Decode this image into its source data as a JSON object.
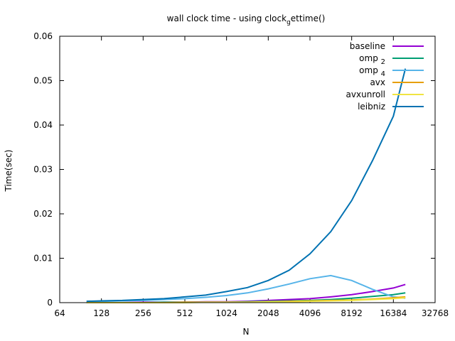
{
  "chart_data": {
    "type": "line",
    "title": "wall clock time - using clock",
    "title_sub": "g",
    "title_tail": "ettime()",
    "xlabel": "N",
    "ylabel": "Time(sec)",
    "xscale": "log2",
    "xlim": [
      64,
      32768
    ],
    "ylim": [
      0,
      0.06
    ],
    "x_ticks": [
      64,
      128,
      256,
      512,
      1024,
      2048,
      4096,
      8192,
      16384,
      32768
    ],
    "x_tick_labels": [
      "64",
      "128",
      "256",
      "512",
      "1024",
      "2048",
      "4096",
      "8192",
      "16384",
      "32768"
    ],
    "y_ticks": [
      0,
      0.01,
      0.02,
      0.03,
      0.04,
      0.05,
      0.06
    ],
    "y_tick_labels": [
      "0",
      "0.01",
      "0.02",
      "0.03",
      "0.04",
      "0.05",
      "0.06"
    ],
    "legend_position": "top-right",
    "grid": false,
    "x": [
      100,
      128,
      181,
      256,
      362,
      512,
      724,
      1024,
      1448,
      2048,
      2896,
      4096,
      5793,
      8192,
      11585,
      16384,
      20000
    ],
    "series": [
      {
        "name": "baseline",
        "label_main": "baseline",
        "label_sub": "",
        "color": "#9400d3",
        "values": [
          0.0,
          0.0,
          0.0,
          0.0001,
          0.0001,
          0.0001,
          0.0002,
          0.0002,
          0.0003,
          0.0005,
          0.0007,
          0.0009,
          0.0013,
          0.0018,
          0.0025,
          0.0033,
          0.0041
        ]
      },
      {
        "name": "omp 2",
        "label_main": "omp",
        "label_sub": "2",
        "color": "#009e73",
        "values": [
          0.0,
          0.0,
          0.0,
          0.0,
          0.0001,
          0.0001,
          0.0001,
          0.0001,
          0.0002,
          0.0003,
          0.0004,
          0.0005,
          0.0007,
          0.001,
          0.0014,
          0.0018,
          0.0022
        ]
      },
      {
        "name": "omp 4",
        "label_main": "omp",
        "label_sub": "4",
        "color": "#56b4e9",
        "values": [
          0.0003,
          0.0003,
          0.0004,
          0.0005,
          0.0007,
          0.0009,
          0.0012,
          0.0016,
          0.0022,
          0.0031,
          0.0042,
          0.0054,
          0.0061,
          0.005,
          0.003,
          0.0013,
          0.001
        ]
      },
      {
        "name": "avx",
        "label_main": "avx",
        "label_sub": "",
        "color": "#e69f00",
        "values": [
          0.0,
          0.0,
          0.0,
          0.0,
          0.0,
          0.0001,
          0.0001,
          0.0001,
          0.0001,
          0.0002,
          0.0003,
          0.0004,
          0.0005,
          0.0006,
          0.0008,
          0.0011,
          0.0013
        ]
      },
      {
        "name": "avxunroll",
        "label_main": "avxunroll",
        "label_sub": "",
        "color": "#f0e442",
        "values": [
          0.0,
          0.0,
          0.0,
          0.0,
          0.0,
          0.0,
          0.0001,
          0.0001,
          0.0001,
          0.0002,
          0.0002,
          0.0003,
          0.0004,
          0.0005,
          0.0007,
          0.0009,
          0.0011
        ]
      },
      {
        "name": "leibniz",
        "label_main": "leibniz",
        "label_sub": "",
        "color": "#0072b2",
        "values": [
          0.0003,
          0.0004,
          0.0005,
          0.0007,
          0.0009,
          0.0013,
          0.0017,
          0.0025,
          0.0034,
          0.005,
          0.0073,
          0.011,
          0.016,
          0.023,
          0.032,
          0.042,
          0.0527
        ]
      }
    ]
  }
}
